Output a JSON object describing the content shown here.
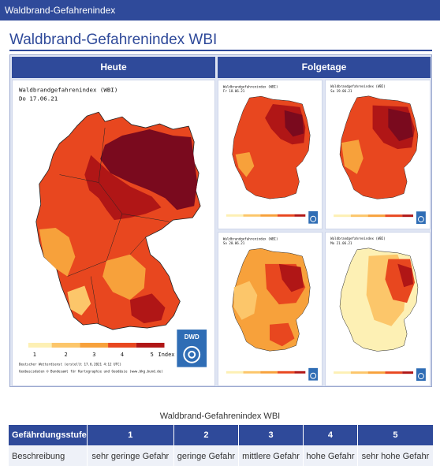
{
  "topbar": {
    "title": "Waldbrand-Gefahrenindex"
  },
  "page": {
    "heading": "Waldbrand-Gefahrenindex WBI"
  },
  "maps": {
    "col_today": "Heute",
    "col_next": "Folgetage",
    "today": {
      "title": "Waldbrandgefahrenindex (WBI)",
      "date": "Do 17.06.21",
      "legend_numbers": [
        "1",
        "2",
        "3",
        "4",
        "5"
      ],
      "legend_unit": "Index",
      "credit1": "Deutscher Wetterdienst (erstellt 17.6.2021 4:12 UTC)",
      "credit2": "Geobasisdaten © Bundesamt für Kartographie und Geodäsie (www.bkg.bund.de)",
      "logo": "DWD"
    },
    "forecast": [
      {
        "title": "Waldbrandgefahrenindex (WBI)",
        "date": "Fr 18.06.21"
      },
      {
        "title": "Waldbrandgefahrenindex (WBI)",
        "date": "Sa 19.06.21"
      },
      {
        "title": "Waldbrandgefahrenindex (WBI)",
        "date": "So 20.06.21"
      },
      {
        "title": "Waldbrandgefahrenindex (WBI)",
        "date": "Mo 21.06.21"
      }
    ]
  },
  "legend_table": {
    "caption": "Waldbrand-Gefahrenindex WBI",
    "header": [
      "Gefährdungsstufe",
      "1",
      "2",
      "3",
      "4",
      "5"
    ],
    "row": [
      "Beschreibung",
      "sehr geringe Gefahr",
      "geringe Gefahr",
      "mittlere Gefahr",
      "hohe Gefahr",
      "sehr hohe Gefahr"
    ]
  },
  "colors": {
    "brand": "#2f4a9a",
    "wbi_1": "#fdf0b4",
    "wbi_2": "#fcc66a",
    "wbi_3": "#f7a13b",
    "wbi_4": "#e8471f",
    "wbi_5": "#b01616",
    "wbi_5_dark": "#7a0a1e"
  }
}
